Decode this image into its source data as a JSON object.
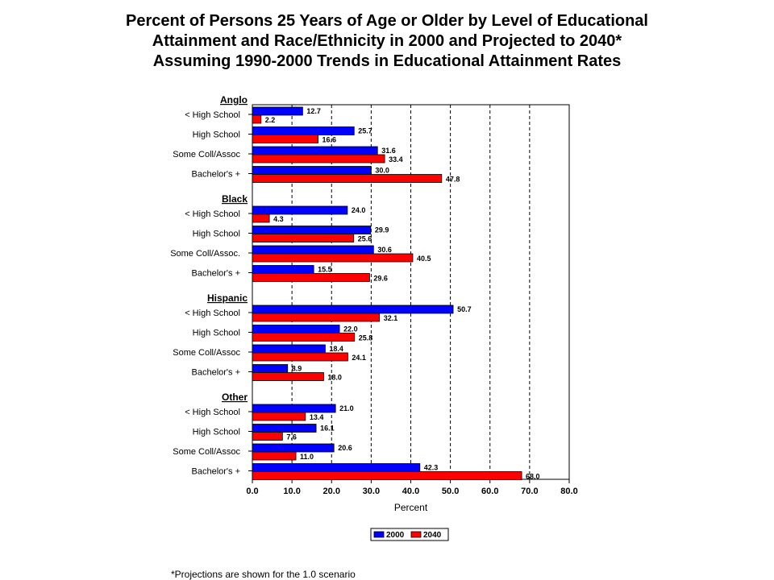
{
  "title_lines": [
    "Percent of Persons 25 Years of Age or Older by Level of Educational",
    "Attainment and Race/Ethnicity in 2000 and Projected to 2040*",
    "Assuming 1990-2000 Trends in Educational Attainment Rates"
  ],
  "footnote": "*Projections are shown for the 1.0 scenario",
  "colors": {
    "2000": "#0000ff",
    "2040": "#ff0000"
  },
  "chart_data": {
    "type": "bar",
    "orientation": "horizontal",
    "xlabel": "Percent",
    "xlim": [
      0,
      80
    ],
    "xticks": [
      "0.0",
      "10.0",
      "20.0",
      "30.0",
      "40.0",
      "50.0",
      "60.0",
      "70.0",
      "80.0"
    ],
    "grid": "vertical dashed",
    "legend": {
      "placement": "bottom",
      "entries": [
        "2000",
        "2040"
      ]
    },
    "groups": [
      {
        "name": "Anglo",
        "categories": [
          {
            "label": "< High School",
            "v2000": 12.7,
            "v2040": 2.2,
            "l2000": "12.7",
            "l2040": "2.2"
          },
          {
            "label": "High School",
            "v2000": 25.7,
            "v2040": 16.6,
            "l2000": "25.7",
            "l2040": "16.6"
          },
          {
            "label": "Some Coll/Assoc",
            "v2000": 31.6,
            "v2040": 33.4,
            "l2000": "31.6",
            "l2040": "33.4"
          },
          {
            "label": "Bachelor's +",
            "v2000": 30.0,
            "v2040": 47.8,
            "l2000": "30.0",
            "l2040": "47.8"
          }
        ]
      },
      {
        "name": "Black",
        "categories": [
          {
            "label": "< High School",
            "v2000": 24.0,
            "v2040": 4.3,
            "l2000": "24.0",
            "l2040": "4.3"
          },
          {
            "label": "High School",
            "v2000": 29.9,
            "v2040": 25.6,
            "l2000": "29.9",
            "l2040": "25.6"
          },
          {
            "label": "Some Coll/Assoc.",
            "v2000": 30.6,
            "v2040": 40.5,
            "l2000": "30.6",
            "l2040": "40.5"
          },
          {
            "label": "Bachelor's +",
            "v2000": 15.5,
            "v2040": 29.6,
            "l2000": "15.5",
            "l2040": "29.6"
          }
        ]
      },
      {
        "name": "Hispanic",
        "categories": [
          {
            "label": "< High School",
            "v2000": 50.7,
            "v2040": 32.1,
            "l2000": "50.7",
            "l2040": "32.1"
          },
          {
            "label": "High School",
            "v2000": 22.0,
            "v2040": 25.8,
            "l2000": "22.0",
            "l2040": "25.8"
          },
          {
            "label": "Some Coll/Assoc",
            "v2000": 18.4,
            "v2040": 24.1,
            "l2000": "18.4",
            "l2040": "24.1"
          },
          {
            "label": "Bachelor's +",
            "v2000": 8.9,
            "v2040": 18.0,
            "l2000": "8.9",
            "l2040": "18.0"
          }
        ]
      },
      {
        "name": "Other",
        "categories": [
          {
            "label": "< High School",
            "v2000": 21.0,
            "v2040": 13.4,
            "l2000": "21.0",
            "l2040": "13.4"
          },
          {
            "label": "High School",
            "v2000": 16.1,
            "v2040": 7.6,
            "l2000": "16.1",
            "l2040": "7.6"
          },
          {
            "label": "Some Coll/Assoc",
            "v2000": 20.6,
            "v2040": 11.0,
            "l2000": "20.6",
            "l2040": "11.0"
          },
          {
            "label": "Bachelor's +",
            "v2000": 42.3,
            "v2040": 68.0,
            "l2000": "42.3",
            "l2040": "68.0"
          }
        ]
      }
    ]
  }
}
